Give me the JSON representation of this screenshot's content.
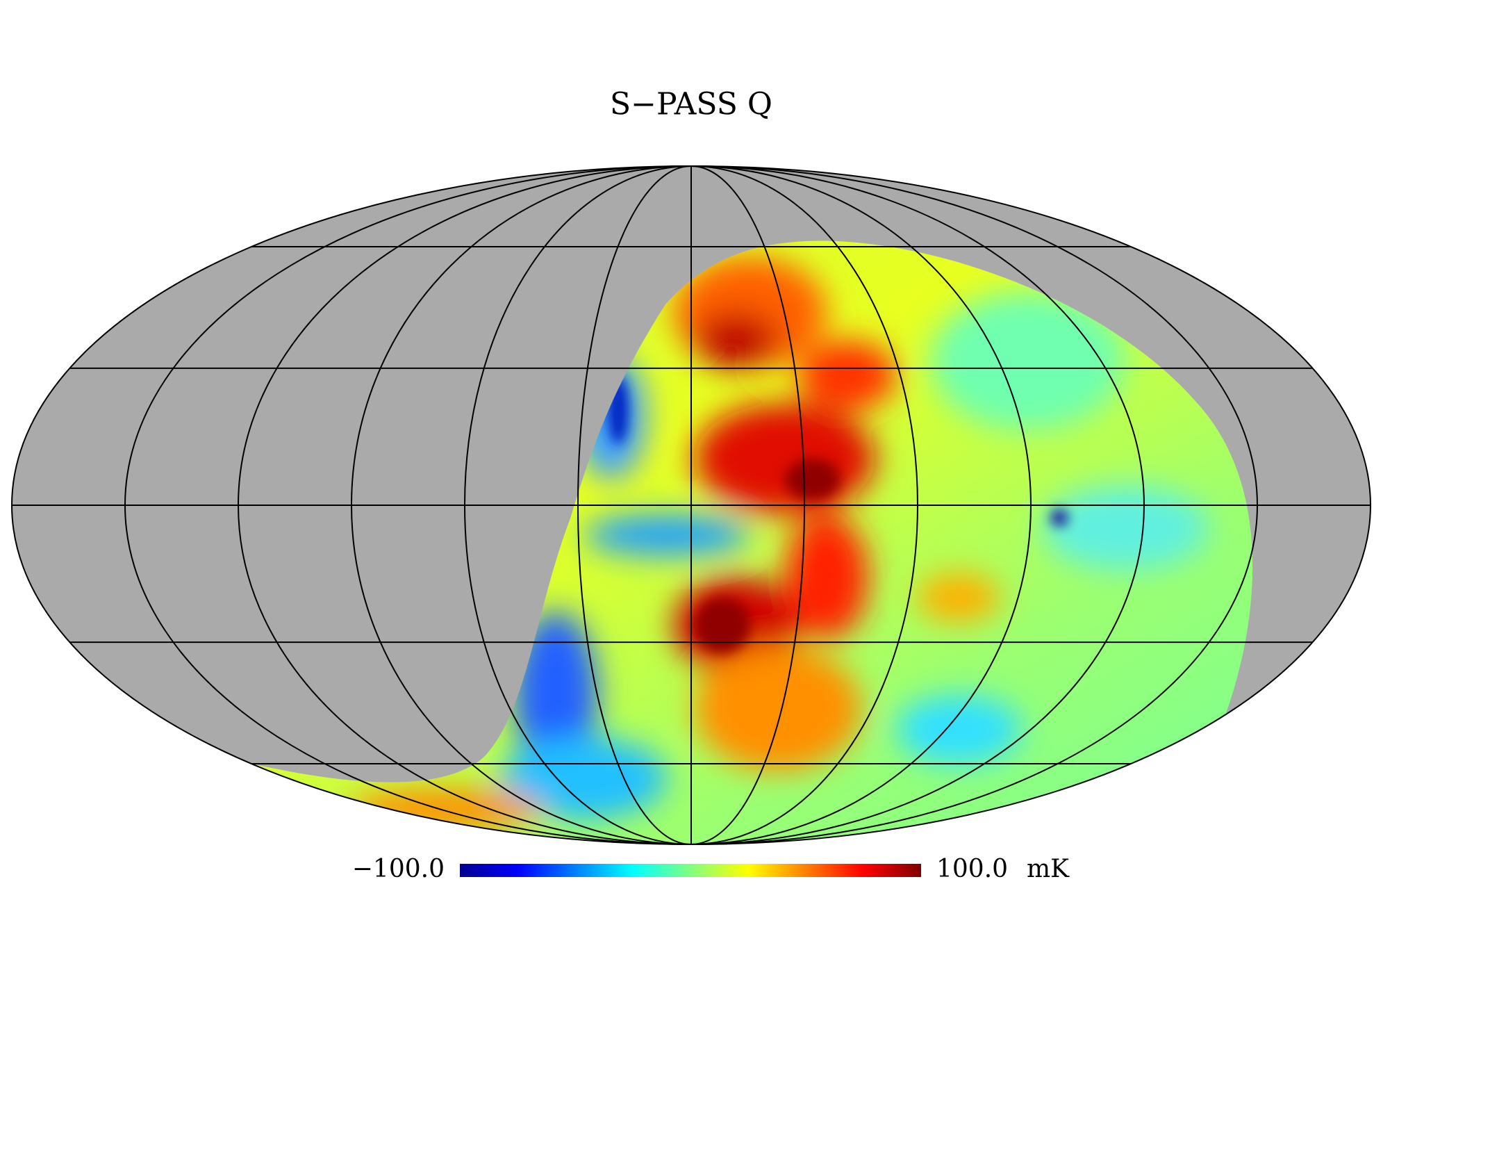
{
  "title": "S−PASS Q",
  "colorbar": {
    "min_label": "−100.0",
    "max_label": "100.0",
    "unit": "mK"
  }
}
